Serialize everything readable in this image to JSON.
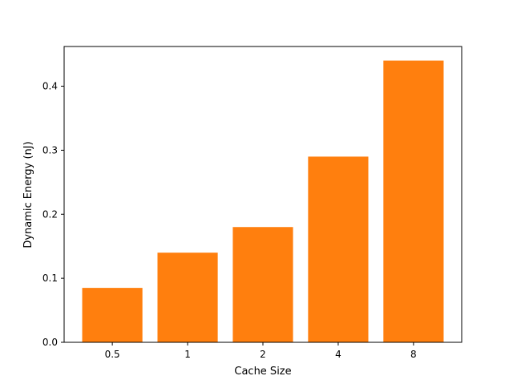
{
  "chart_data": {
    "type": "bar",
    "categories": [
      "0.5",
      "1",
      "2",
      "4",
      "8"
    ],
    "values": [
      0.085,
      0.14,
      0.18,
      0.29,
      0.44
    ],
    "title": "",
    "xlabel": "Cache Size",
    "ylabel": "Dynamic Energy (nJ)",
    "ylim": [
      0,
      0.462
    ],
    "yticks": [
      "0.0",
      "0.1",
      "0.2",
      "0.3",
      "0.4"
    ],
    "bar_color": "#ff7f0e",
    "grid": false,
    "legend": "none"
  }
}
